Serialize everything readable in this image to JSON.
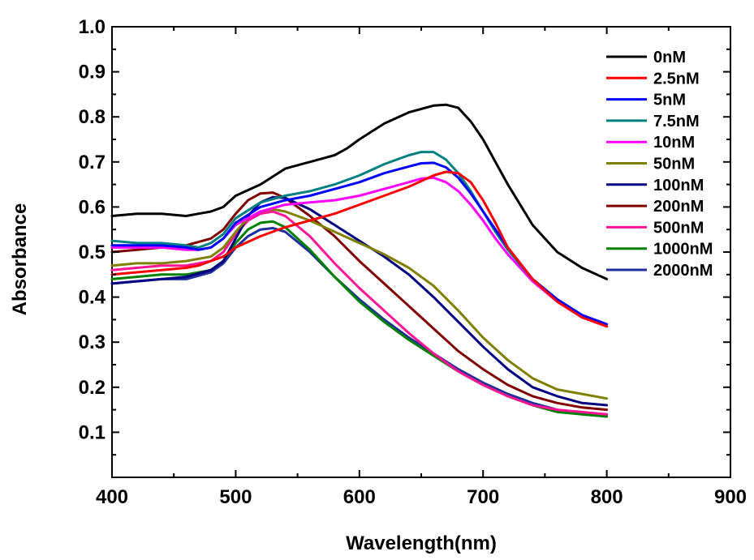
{
  "chart_data": {
    "type": "line",
    "title": "",
    "xlabel": "Wavelength(nm)",
    "ylabel": "Absorbance",
    "xlim": [
      400,
      900
    ],
    "ylim": [
      0.0,
      1.0
    ],
    "xticks": [
      400,
      500,
      600,
      700,
      800,
      900
    ],
    "xtick_labels": [
      "400",
      "500",
      "600",
      "700",
      "800",
      "900"
    ],
    "yticks": [
      0.1,
      0.2,
      0.3,
      0.4,
      0.5,
      0.6,
      0.7,
      0.8,
      0.9,
      1.0
    ],
    "ytick_labels": [
      "0.1",
      "0.2",
      "0.3",
      "0.4",
      "0.5",
      "0.6",
      "0.7",
      "0.8",
      "0.9",
      "1.0"
    ],
    "grid": false,
    "legend_position": "top-right",
    "series": [
      {
        "name": "0nM",
        "color": "#000000",
        "x": [
          400,
          420,
          440,
          460,
          470,
          480,
          490,
          500,
          520,
          540,
          560,
          580,
          590,
          600,
          620,
          640,
          660,
          670,
          680,
          690,
          700,
          710,
          720,
          740,
          760,
          780,
          800
        ],
        "y": [
          0.58,
          0.585,
          0.585,
          0.58,
          0.585,
          0.59,
          0.6,
          0.625,
          0.65,
          0.685,
          0.7,
          0.715,
          0.73,
          0.75,
          0.785,
          0.81,
          0.825,
          0.827,
          0.82,
          0.79,
          0.75,
          0.7,
          0.65,
          0.56,
          0.5,
          0.465,
          0.44
        ]
      },
      {
        "name": "2.5nM",
        "color": "#ff0000",
        "x": [
          400,
          420,
          440,
          460,
          470,
          480,
          490,
          500,
          520,
          540,
          560,
          580,
          600,
          620,
          640,
          660,
          670,
          680,
          690,
          700,
          710,
          720,
          740,
          760,
          780,
          800
        ],
        "y": [
          0.45,
          0.455,
          0.46,
          0.465,
          0.47,
          0.48,
          0.49,
          0.51,
          0.535,
          0.555,
          0.57,
          0.585,
          0.605,
          0.625,
          0.645,
          0.67,
          0.678,
          0.675,
          0.655,
          0.615,
          0.565,
          0.51,
          0.44,
          0.39,
          0.355,
          0.335
        ]
      },
      {
        "name": "5nM",
        "color": "#0000ff",
        "x": [
          400,
          420,
          440,
          460,
          470,
          480,
          490,
          500,
          520,
          540,
          560,
          580,
          600,
          620,
          640,
          650,
          660,
          670,
          680,
          690,
          700,
          710,
          720,
          740,
          760,
          780,
          800
        ],
        "y": [
          0.515,
          0.515,
          0.515,
          0.51,
          0.505,
          0.51,
          0.53,
          0.565,
          0.6,
          0.615,
          0.625,
          0.64,
          0.655,
          0.675,
          0.69,
          0.697,
          0.698,
          0.688,
          0.665,
          0.63,
          0.59,
          0.55,
          0.51,
          0.44,
          0.395,
          0.36,
          0.34
        ]
      },
      {
        "name": "7.5nM",
        "color": "#008080",
        "x": [
          400,
          420,
          440,
          460,
          470,
          480,
          490,
          500,
          520,
          540,
          560,
          580,
          600,
          620,
          640,
          650,
          660,
          670,
          680,
          690,
          700,
          710,
          720,
          740,
          760,
          780,
          800
        ],
        "y": [
          0.525,
          0.52,
          0.52,
          0.515,
          0.51,
          0.52,
          0.54,
          0.575,
          0.61,
          0.625,
          0.635,
          0.65,
          0.67,
          0.695,
          0.715,
          0.722,
          0.722,
          0.705,
          0.675,
          0.635,
          0.59,
          0.545,
          0.505,
          0.44,
          0.395,
          0.36,
          0.335
        ]
      },
      {
        "name": "10nM",
        "color": "#ff00ff",
        "x": [
          400,
          420,
          440,
          460,
          470,
          480,
          490,
          500,
          520,
          540,
          560,
          580,
          600,
          620,
          640,
          650,
          660,
          670,
          680,
          690,
          700,
          710,
          720,
          740,
          760,
          780,
          800
        ],
        "y": [
          0.51,
          0.51,
          0.51,
          0.505,
          0.505,
          0.51,
          0.53,
          0.56,
          0.59,
          0.605,
          0.61,
          0.615,
          0.625,
          0.64,
          0.655,
          0.663,
          0.665,
          0.655,
          0.635,
          0.605,
          0.57,
          0.53,
          0.495,
          0.435,
          0.39,
          0.355,
          0.335
        ]
      },
      {
        "name": "50nM",
        "color": "#808000",
        "x": [
          400,
          420,
          440,
          460,
          480,
          490,
          500,
          510,
          520,
          530,
          540,
          560,
          580,
          600,
          620,
          640,
          660,
          680,
          700,
          720,
          740,
          760,
          780,
          800
        ],
        "y": [
          0.47,
          0.475,
          0.475,
          0.48,
          0.49,
          0.51,
          0.545,
          0.575,
          0.59,
          0.595,
          0.59,
          0.57,
          0.545,
          0.52,
          0.495,
          0.465,
          0.425,
          0.37,
          0.31,
          0.26,
          0.22,
          0.195,
          0.185,
          0.175
        ]
      },
      {
        "name": "100nM",
        "color": "#000080",
        "x": [
          400,
          420,
          440,
          460,
          480,
          490,
          500,
          510,
          520,
          530,
          540,
          560,
          580,
          600,
          620,
          640,
          660,
          680,
          700,
          720,
          740,
          760,
          780,
          800
        ],
        "y": [
          0.43,
          0.435,
          0.44,
          0.445,
          0.46,
          0.48,
          0.53,
          0.58,
          0.61,
          0.622,
          0.62,
          0.595,
          0.56,
          0.525,
          0.49,
          0.45,
          0.4,
          0.345,
          0.29,
          0.24,
          0.2,
          0.18,
          0.165,
          0.16
        ]
      },
      {
        "name": "200nM",
        "color": "#800000",
        "x": [
          400,
          420,
          440,
          460,
          480,
          490,
          500,
          510,
          520,
          530,
          540,
          560,
          580,
          600,
          620,
          640,
          660,
          680,
          700,
          720,
          740,
          760,
          780,
          800
        ],
        "y": [
          0.5,
          0.505,
          0.51,
          0.515,
          0.53,
          0.55,
          0.585,
          0.615,
          0.63,
          0.632,
          0.62,
          0.58,
          0.535,
          0.48,
          0.43,
          0.38,
          0.33,
          0.28,
          0.24,
          0.205,
          0.18,
          0.165,
          0.155,
          0.15
        ]
      },
      {
        "name": "500nM",
        "color": "#ff1493",
        "x": [
          400,
          420,
          440,
          460,
          480,
          490,
          500,
          510,
          520,
          530,
          540,
          560,
          580,
          600,
          620,
          640,
          660,
          680,
          700,
          720,
          740,
          760,
          780,
          800
        ],
        "y": [
          0.46,
          0.465,
          0.47,
          0.47,
          0.48,
          0.5,
          0.54,
          0.57,
          0.585,
          0.59,
          0.58,
          0.535,
          0.475,
          0.42,
          0.37,
          0.32,
          0.275,
          0.235,
          0.205,
          0.18,
          0.16,
          0.15,
          0.145,
          0.14
        ]
      },
      {
        "name": "1000nM",
        "color": "#008000",
        "x": [
          400,
          420,
          440,
          460,
          480,
          490,
          500,
          510,
          520,
          530,
          540,
          560,
          580,
          600,
          620,
          640,
          660,
          680,
          700,
          720,
          740,
          760,
          780,
          800
        ],
        "y": [
          0.44,
          0.445,
          0.45,
          0.45,
          0.46,
          0.48,
          0.52,
          0.55,
          0.565,
          0.568,
          0.555,
          0.505,
          0.445,
          0.39,
          0.345,
          0.305,
          0.27,
          0.235,
          0.205,
          0.18,
          0.16,
          0.145,
          0.14,
          0.135
        ]
      },
      {
        "name": "2000nM",
        "color": "#1f2d9e",
        "x": [
          400,
          420,
          440,
          460,
          480,
          490,
          500,
          510,
          520,
          530,
          540,
          560,
          580,
          600,
          620,
          640,
          660,
          680,
          700,
          720,
          740,
          760,
          780,
          800
        ],
        "y": [
          0.43,
          0.435,
          0.44,
          0.44,
          0.455,
          0.475,
          0.51,
          0.535,
          0.55,
          0.553,
          0.545,
          0.5,
          0.445,
          0.395,
          0.35,
          0.31,
          0.275,
          0.24,
          0.21,
          0.185,
          0.165,
          0.15,
          0.14,
          0.135
        ]
      }
    ]
  }
}
